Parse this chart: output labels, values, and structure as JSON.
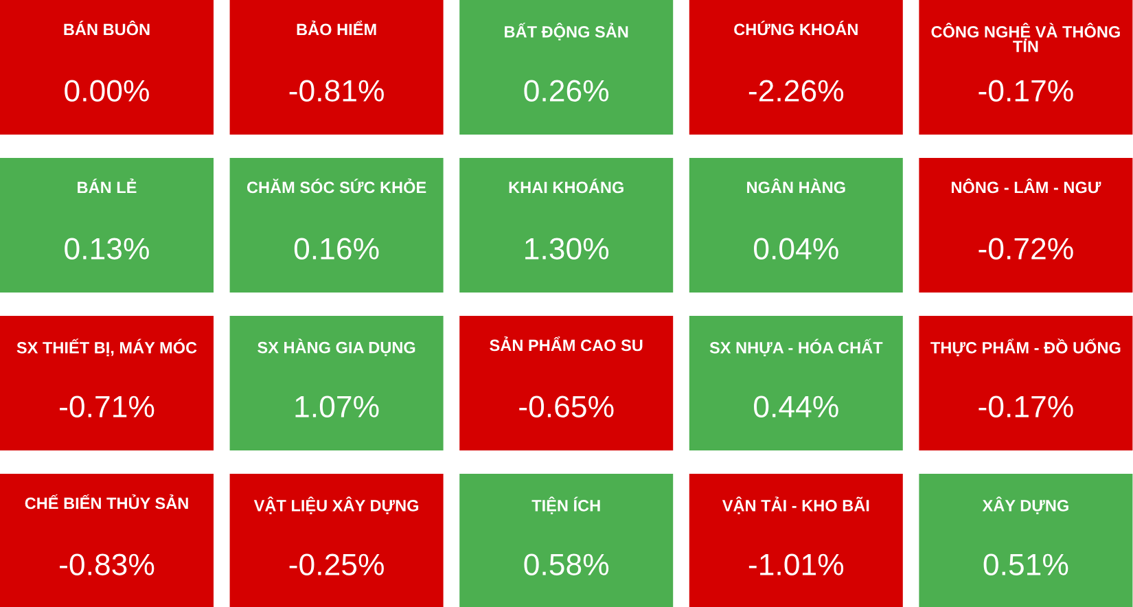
{
  "chart_data": {
    "type": "other",
    "categories": [
      "BÁN BUÔN",
      "BẢO HIỂM",
      "BẤT ĐỘNG SẢN",
      "CHỨNG KHOÁN",
      "CÔNG NGHỆ VÀ THÔNG TIN",
      "BÁN LẺ",
      "CHĂM SÓC SỨC KHỎE",
      "KHAI KHOÁNG",
      "NGÂN HÀNG",
      "NÔNG - LÂM - NGƯ",
      "SX THIẾT BỊ, MÁY MÓC",
      "SX HÀNG GIA DỤNG",
      "SẢN PHẨM CAO SU",
      "SX NHỰA - HÓA CHẤT",
      "THỰC PHẨM - ĐỒ UỐNG",
      "CHẾ BIẾN THỦY SẢN",
      "VẬT LIỆU XÂY DỰNG",
      "TIỆN ÍCH",
      "VẬN TẢI - KHO BÃI",
      "XÂY DỰNG"
    ],
    "values": [
      0.0,
      -0.81,
      0.26,
      -2.26,
      -0.17,
      0.13,
      0.16,
      1.3,
      0.04,
      -0.72,
      -0.71,
      1.07,
      -0.65,
      0.44,
      -0.17,
      -0.83,
      -0.25,
      0.58,
      -1.01,
      0.51
    ],
    "value_labels": [
      "0.00%",
      "-0.81%",
      "0.26%",
      "-2.26%",
      "-0.17%",
      "0.13%",
      "0.16%",
      "1.30%",
      "0.04%",
      "-0.72%",
      "-0.71%",
      "1.07%",
      "-0.65%",
      "0.44%",
      "-0.17%",
      "-0.83%",
      "-0.25%",
      "0.58%",
      "-1.01%",
      "0.51%"
    ],
    "colors": [
      "#d50000",
      "#d50000",
      "#4caf50",
      "#d50000",
      "#d50000",
      "#4caf50",
      "#4caf50",
      "#4caf50",
      "#4caf50",
      "#d50000",
      "#d50000",
      "#4caf50",
      "#d50000",
      "#4caf50",
      "#d50000",
      "#d50000",
      "#d50000",
      "#4caf50",
      "#d50000",
      "#4caf50"
    ]
  }
}
